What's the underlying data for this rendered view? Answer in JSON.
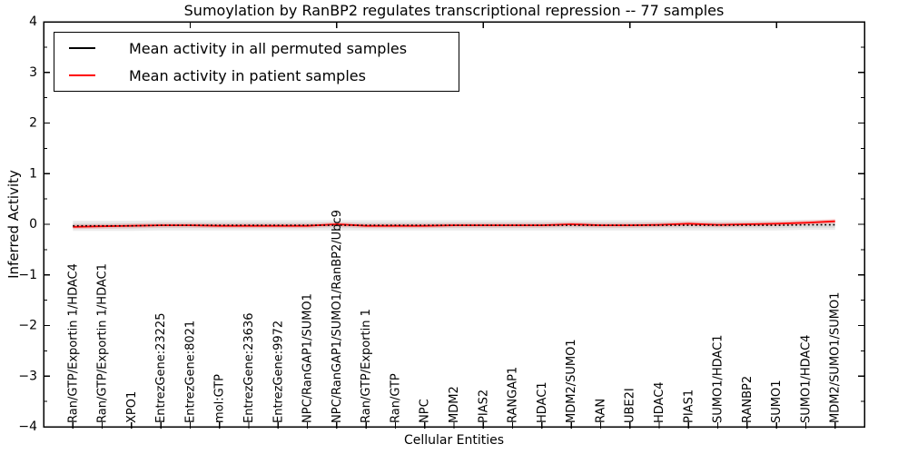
{
  "chart_data": {
    "type": "line",
    "title": "Sumoylation by RanBP2 regulates transcriptional repression -- 77 samples",
    "xlabel": "Cellular Entities",
    "ylabel": "Inferred Activity",
    "ylim": [
      -4,
      4
    ],
    "yticks_major": [
      -4,
      -3,
      -2,
      -1,
      0,
      1,
      2,
      3,
      4
    ],
    "ytick_labels": [
      "−4",
      "−3",
      "−2",
      "−1",
      "0",
      "1",
      "2",
      "3",
      "4"
    ],
    "yticks_minor": [
      -3.5,
      -2.5,
      -1.5,
      -0.5,
      0.5,
      1.5,
      2.5,
      3.5
    ],
    "grid": false,
    "legend_position": "upper left",
    "categories": [
      "Ran/GTP/Exportin 1/HDAC4",
      "Ran/GTP/Exportin 1/HDAC1",
      "XPO1",
      "EntrezGene:23225",
      "EntrezGene:8021",
      "mol:GTP",
      "EntrezGene:23636",
      "EntrezGene:9972",
      "NPC/RanGAP1/SUMO1",
      "NPC/RanGAP1/SUMO1/RanBP2/Ubc9",
      "Ran/GTP/Exportin 1",
      "Ran/GTP",
      "NPC",
      "MDM2",
      "PIAS2",
      "RANGAP1",
      "HDAC1",
      "MDM2/SUMO1",
      "RAN",
      "UBE2I",
      "HDAC4",
      "PIAS1",
      "SUMO1/HDAC1",
      "RANBP2",
      "SUMO1",
      "SUMO1/HDAC4",
      "MDM2/SUMO1/SUMO1"
    ],
    "series": [
      {
        "name": "Mean activity in all permuted samples",
        "color": "#000000",
        "line_style": "dotted",
        "values": [
          -0.03,
          -0.03,
          -0.03,
          -0.02,
          -0.02,
          -0.02,
          -0.02,
          -0.02,
          -0.02,
          -0.02,
          -0.02,
          -0.02,
          -0.02,
          -0.02,
          -0.02,
          -0.02,
          -0.02,
          -0.02,
          -0.02,
          -0.02,
          -0.02,
          -0.02,
          -0.02,
          -0.02,
          -0.02,
          -0.01,
          -0.01
        ]
      },
      {
        "name": "Mean activity in patient samples",
        "color": "#ff0000",
        "line_style": "solid",
        "values": [
          -0.05,
          -0.04,
          -0.03,
          -0.02,
          -0.02,
          -0.03,
          -0.03,
          -0.03,
          -0.03,
          0.0,
          -0.03,
          -0.03,
          -0.03,
          -0.02,
          -0.02,
          -0.02,
          -0.02,
          0.0,
          -0.02,
          -0.02,
          -0.01,
          0.01,
          -0.01,
          0.0,
          0.01,
          0.03,
          0.06
        ]
      }
    ],
    "bands": [
      {
        "follows_series": 0,
        "color": "#bdbdbd",
        "opacity": 0.3,
        "halfwidth": 0.1
      },
      {
        "follows_series": 0,
        "color": "#bdbdbd",
        "opacity": 0.35,
        "halfwidth": 0.055
      },
      {
        "follows_series": 1,
        "color": "#ff7f7f",
        "opacity": 0.32,
        "halfwidth": 0.045
      }
    ],
    "xticks_top_indices": [
      4,
      9,
      14,
      19,
      24
    ]
  }
}
